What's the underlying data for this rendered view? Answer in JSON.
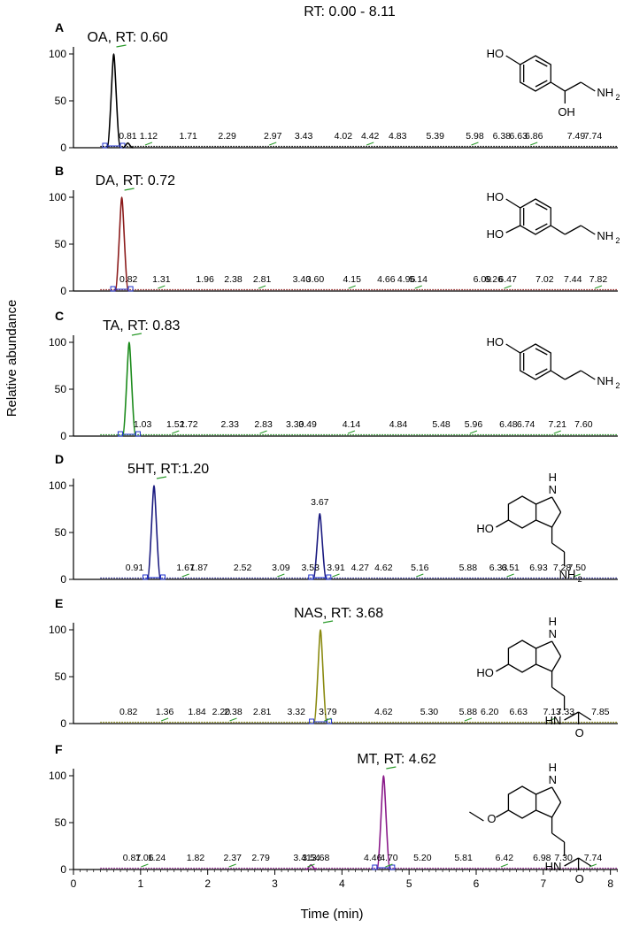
{
  "figure_title": "RT: 0.00 - 8.11",
  "xlabel": "Time (min)",
  "ylabel": "Relative abundance",
  "chart_data": [
    {
      "type": "line",
      "panel": "A",
      "title": "OA, RT: 0.60",
      "color": "#000000",
      "xlim": [
        0,
        8.11
      ],
      "ylim": [
        0,
        100
      ],
      "yticks": [
        0,
        50,
        100
      ],
      "peaks": [
        {
          "rt": 0.6,
          "height": 100
        },
        {
          "rt": 0.81,
          "height": 5
        }
      ],
      "labels": [
        "0.81",
        "1.12",
        "1.71",
        "2.29",
        "2.97",
        "3.43",
        "4.02",
        "4.42",
        "4.83",
        "5.39",
        "5.98",
        "6.38",
        "6.63",
        "6.86",
        "7.49",
        "7.74"
      ],
      "molecule": {
        "top": "HO",
        "bottom": "OH",
        "end": "NH",
        "sub": "2"
      }
    },
    {
      "type": "line",
      "panel": "B",
      "title": "DA, RT: 0.72",
      "color": "#8b1a1a",
      "xlim": [
        0,
        8.11
      ],
      "ylim": [
        0,
        100
      ],
      "yticks": [
        0,
        50,
        100
      ],
      "peaks": [
        {
          "rt": 0.72,
          "height": 100
        }
      ],
      "labels": [
        "0.82",
        "1.31",
        "1.96",
        "2.38",
        "2.81",
        "3.40",
        "3.60",
        "4.15",
        "4.66",
        "4.96",
        "5.14",
        "6.09",
        "6.26",
        "6.47",
        "7.02",
        "7.44",
        "7.82"
      ],
      "molecule": {
        "top": "HO",
        "mid": "HO",
        "end": "NH",
        "sub": "2"
      }
    },
    {
      "type": "line",
      "panel": "C",
      "title": "TA, RT: 0.83",
      "color": "#1a8a1a",
      "xlim": [
        0,
        8.11
      ],
      "ylim": [
        0,
        100
      ],
      "yticks": [
        0,
        50,
        100
      ],
      "peaks": [
        {
          "rt": 0.83,
          "height": 100
        }
      ],
      "labels": [
        "1.03",
        "1.52",
        "1.72",
        "2.33",
        "2.83",
        "3.30",
        "3.49",
        "4.14",
        "4.84",
        "5.48",
        "5.96",
        "6.48",
        "6.74",
        "7.21",
        "7.60"
      ],
      "molecule": {
        "top": "HO",
        "end": "NH",
        "sub": "2"
      }
    },
    {
      "type": "line",
      "panel": "D",
      "title": "5HT, RT:1.20",
      "color": "#1a1a80",
      "xlim": [
        0,
        8.11
      ],
      "ylim": [
        0,
        100
      ],
      "yticks": [
        0,
        50,
        100
      ],
      "peaks": [
        {
          "rt": 1.2,
          "height": 100
        },
        {
          "rt": 3.67,
          "height": 70
        }
      ],
      "labels": [
        "0.91",
        "1.67",
        "1.87",
        "2.52",
        "3.09",
        "3.53",
        "3.67",
        "3.91",
        "4.27",
        "4.62",
        "5.16",
        "5.88",
        "6.33",
        "6.51",
        "6.93",
        "7.28",
        "7.50"
      ],
      "molecule": {
        "nh": "H",
        "nh2": "N",
        "ho": "HO",
        "end": "NH",
        "sub": "2"
      }
    },
    {
      "type": "line",
      "panel": "E",
      "title": "NAS, RT: 3.68",
      "color": "#8a8a10",
      "xlim": [
        0,
        8.11
      ],
      "ylim": [
        0,
        100
      ],
      "yticks": [
        0,
        50,
        100
      ],
      "peaks": [
        {
          "rt": 3.68,
          "height": 100
        }
      ],
      "labels": [
        "0.82",
        "1.36",
        "1.84",
        "2.20",
        "2.38",
        "2.81",
        "3.32",
        "3.79",
        "4.62",
        "5.30",
        "5.88",
        "6.20",
        "6.63",
        "7.13",
        "7.33",
        "7.85"
      ],
      "molecule": {
        "nh": "H",
        "nh2": "N",
        "ho": "HO",
        "amide": "HN",
        "o": "O"
      }
    },
    {
      "type": "line",
      "panel": "F",
      "title": "MT, RT: 4.62",
      "color": "#8a1a8a",
      "xlim": [
        0,
        8.11
      ],
      "ylim": [
        0,
        100
      ],
      "yticks": [
        0,
        50,
        100
      ],
      "xticks": [
        0,
        1,
        2,
        3,
        4,
        5,
        6,
        7,
        8
      ],
      "peaks": [
        {
          "rt": 4.62,
          "height": 100
        },
        {
          "rt": 3.54,
          "height": 5
        }
      ],
      "labels": [
        "0.87",
        "1.06",
        "1.24",
        "1.82",
        "2.37",
        "2.79",
        "3.41",
        "3.54",
        "3.68",
        "4.46",
        "4.70",
        "5.20",
        "5.81",
        "6.42",
        "6.98",
        "7.30",
        "7.74"
      ],
      "molecule": {
        "nh": "H",
        "nh2": "N",
        "ome": "O",
        "amide": "HN",
        "o": "O"
      }
    }
  ]
}
